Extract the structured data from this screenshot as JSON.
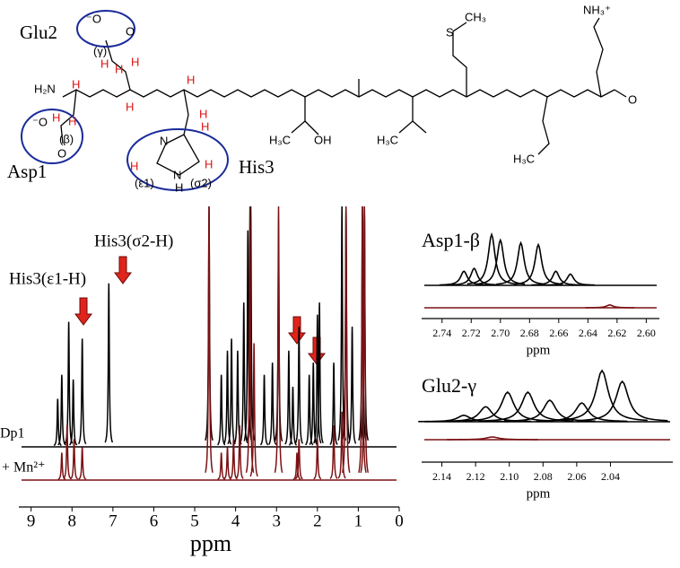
{
  "structure": {
    "residues": [
      "Glu2",
      "Asp1",
      "His3"
    ],
    "labels": {
      "gamma": "(γ)",
      "beta": "(β)",
      "e1": "(ε1)",
      "s2": "(σ2)",
      "h2n": "H₂N",
      "oh": "OH",
      "h3c": "H₃C",
      "s": "S",
      "ch3": "CH₃",
      "nh3": "NH₃⁺",
      "n": "N",
      "h": "H",
      "o": "O",
      "ominus": "⁻O"
    }
  },
  "chart_data": [
    {
      "type": "spectrum",
      "xlabel": "ppm",
      "xlim": [
        9.3,
        0
      ],
      "xticks": [
        9,
        8,
        7,
        6,
        5,
        4,
        3,
        2,
        1,
        0
      ],
      "ylim": [
        0,
        1
      ],
      "annotations": [
        "His3(ε1-H)",
        "His3(σ2-H)"
      ],
      "series": [
        {
          "name": "Dp1",
          "color": "#000000",
          "x": [
            8.35,
            8.25,
            8.08,
            7.97,
            7.75,
            7.1,
            4.65,
            4.35,
            4.2,
            4.1,
            3.95,
            3.8,
            3.7,
            3.63,
            3.3,
            3.1,
            2.95,
            2.7,
            2.6,
            2.45,
            2.2,
            2.1,
            2.0,
            1.95,
            1.6,
            1.4,
            1.3,
            1.15,
            0.9,
            0.85
          ],
          "values": [
            0.2,
            0.3,
            0.52,
            0.28,
            0.45,
            0.68,
            1.0,
            0.3,
            0.4,
            0.45,
            0.4,
            0.6,
            0.9,
            1.0,
            0.3,
            0.35,
            0.85,
            0.4,
            0.25,
            0.5,
            0.3,
            0.35,
            0.55,
            0.6,
            0.35,
            1.0,
            1.0,
            0.5,
            1.0,
            1.0
          ]
        },
        {
          "name": "+ Mn²⁺",
          "color": "#7b1113",
          "x": [
            8.25,
            8.12,
            7.95,
            7.75,
            4.65,
            4.35,
            4.2,
            4.05,
            3.9,
            3.65,
            3.55,
            2.95,
            2.5,
            2.45,
            2.0,
            1.6,
            1.4,
            1.3,
            0.9,
            0.85
          ],
          "values": [
            0.1,
            0.2,
            0.15,
            0.12,
            1.0,
            0.1,
            0.12,
            0.15,
            0.2,
            1.0,
            0.5,
            1.0,
            0.1,
            0.15,
            0.15,
            0.2,
            0.25,
            1.0,
            1.0,
            1.0
          ]
        }
      ]
    },
    {
      "type": "spectrum",
      "title": "Asp1-β",
      "xlabel": "ppm",
      "xlim": [
        2.754,
        2.591
      ],
      "xticks": [
        2.74,
        2.72,
        {
          "value": 2.7,
          "label": "2.70"
        },
        2.68,
        2.66,
        2.64,
        2.62,
        {
          "value": 2.6,
          "label": "2.60"
        }
      ],
      "ylim": [
        0,
        1
      ],
      "series": [
        {
          "color": "#000000",
          "x": [
            2.725,
            2.718,
            2.706,
            2.7,
            2.686,
            2.674,
            2.662,
            2.652
          ],
          "values": [
            0.25,
            0.3,
            0.9,
            0.8,
            0.75,
            0.72,
            0.25,
            0.2
          ]
        },
        {
          "color": "#7b1113",
          "x": [
            2.625
          ],
          "values": [
            0.05
          ]
        }
      ]
    },
    {
      "type": "spectrum",
      "title": "Glu2-γ",
      "xlabel": "ppm",
      "xlim": [
        2.152,
        2.003
      ],
      "xticks": [
        2.14,
        2.12,
        {
          "value": 2.1,
          "label": "2.10"
        },
        2.08,
        2.06,
        2.04
      ],
      "ylim": [
        0,
        1
      ],
      "series": [
        {
          "color": "#000000",
          "x": [
            2.127,
            2.114,
            2.101,
            2.089,
            2.076,
            2.057,
            2.045,
            2.033
          ],
          "values": [
            0.12,
            0.28,
            0.55,
            0.55,
            0.4,
            0.35,
            0.95,
            0.75
          ]
        },
        {
          "color": "#7b1113",
          "x": [
            2.11
          ],
          "values": [
            0.05
          ]
        }
      ]
    }
  ]
}
